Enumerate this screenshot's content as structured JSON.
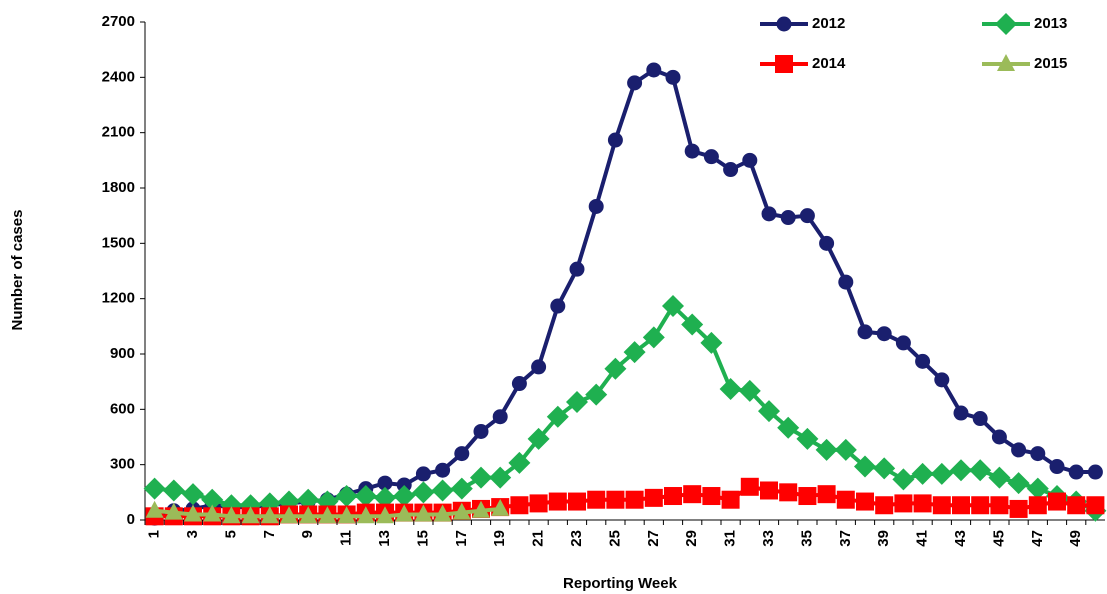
{
  "chart_data": {
    "type": "line",
    "x_label": "Reporting Week",
    "y_label": "Number of cases",
    "categories": [
      1,
      null,
      3,
      null,
      5,
      null,
      7,
      null,
      9,
      null,
      11,
      null,
      13,
      null,
      15,
      null,
      17,
      null,
      19,
      null,
      21,
      null,
      23,
      null,
      25,
      null,
      27,
      null,
      29,
      null,
      31,
      null,
      33,
      null,
      35,
      null,
      37,
      null,
      39,
      null,
      41,
      null,
      43,
      null,
      45,
      null,
      47,
      null,
      49,
      null
    ],
    "ylim": [
      0,
      2700
    ],
    "yticks": [
      0,
      300,
      600,
      900,
      1200,
      1500,
      1800,
      2100,
      2400,
      2700
    ],
    "legend": "top-right",
    "series": [
      {
        "name": "2012",
        "color": "#1a1f6e",
        "marker": "circle",
        "values": [
          10,
          50,
          60,
          80,
          70,
          70,
          80,
          90,
          100,
          110,
          140,
          170,
          200,
          190,
          250,
          270,
          360,
          480,
          560,
          740,
          830,
          1160,
          1360,
          1700,
          2060,
          2370,
          2440,
          2400,
          2000,
          1970,
          1900,
          1950,
          1660,
          1640,
          1650,
          1500,
          1290,
          1020,
          1010,
          960,
          860,
          760,
          580,
          550,
          450,
          380,
          360,
          290,
          260,
          260
        ]
      },
      {
        "name": "2013",
        "color": "#1fb050",
        "marker": "diamond",
        "values": [
          170,
          160,
          140,
          110,
          80,
          80,
          90,
          100,
          110,
          100,
          130,
          130,
          120,
          130,
          150,
          160,
          170,
          230,
          230,
          310,
          440,
          560,
          640,
          680,
          820,
          910,
          990,
          1160,
          1060,
          960,
          710,
          700,
          590,
          500,
          440,
          380,
          380,
          290,
          280,
          220,
          250,
          250,
          270,
          270,
          230,
          200,
          170,
          130,
          100,
          50
        ]
      },
      {
        "name": "2014",
        "color": "#ff0000",
        "marker": "square",
        "values": [
          20,
          20,
          20,
          20,
          20,
          20,
          20,
          30,
          30,
          30,
          30,
          40,
          40,
          40,
          40,
          40,
          50,
          60,
          70,
          80,
          90,
          100,
          100,
          110,
          110,
          110,
          120,
          130,
          140,
          130,
          110,
          180,
          160,
          150,
          130,
          140,
          110,
          100,
          80,
          90,
          90,
          80,
          80,
          80,
          80,
          60,
          80,
          100,
          80,
          80
        ]
      },
      {
        "name": "2015",
        "color": "#9bbb59",
        "marker": "triangle",
        "values": [
          50,
          40,
          30,
          30,
          20,
          20,
          20,
          20,
          20,
          20,
          20,
          20,
          20,
          30,
          30,
          30,
          40,
          50,
          60,
          null,
          null,
          null,
          null,
          null,
          null,
          null,
          null,
          null,
          null,
          null,
          null,
          null,
          null,
          null,
          null,
          null,
          null,
          null,
          null,
          null,
          null,
          null,
          null,
          null,
          null,
          null,
          null,
          null,
          null,
          null
        ]
      }
    ]
  }
}
